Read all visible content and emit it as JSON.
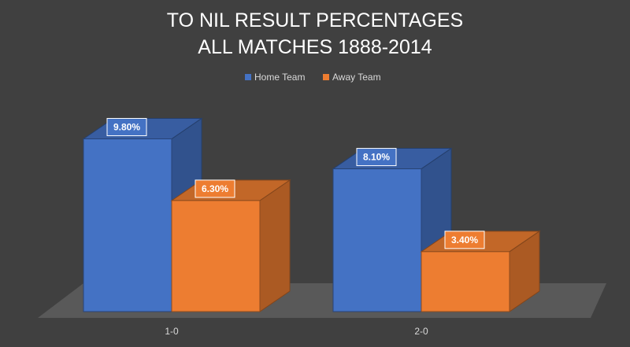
{
  "chart_data": {
    "type": "bar",
    "style": "3d-clustered-column",
    "title": [
      "TO NIL RESULT PERCENTAGES",
      "ALL MATCHES 1888-2014"
    ],
    "categories": [
      "1-0",
      "2-0"
    ],
    "series": [
      {
        "name": "Home Team",
        "values": [
          9.8,
          8.1
        ],
        "labels": [
          "9.80%",
          "8.10%"
        ],
        "color": "#4472C4"
      },
      {
        "name": "Away Team",
        "values": [
          6.3,
          3.4
        ],
        "labels": [
          "6.30%",
          "3.40%"
        ],
        "color": "#ED7D31"
      }
    ],
    "xlabel": "",
    "ylabel": "",
    "ylim": [
      0,
      10
    ],
    "grid": false,
    "legend": "top-center",
    "background": "#404040",
    "floor_color": "#595959"
  }
}
